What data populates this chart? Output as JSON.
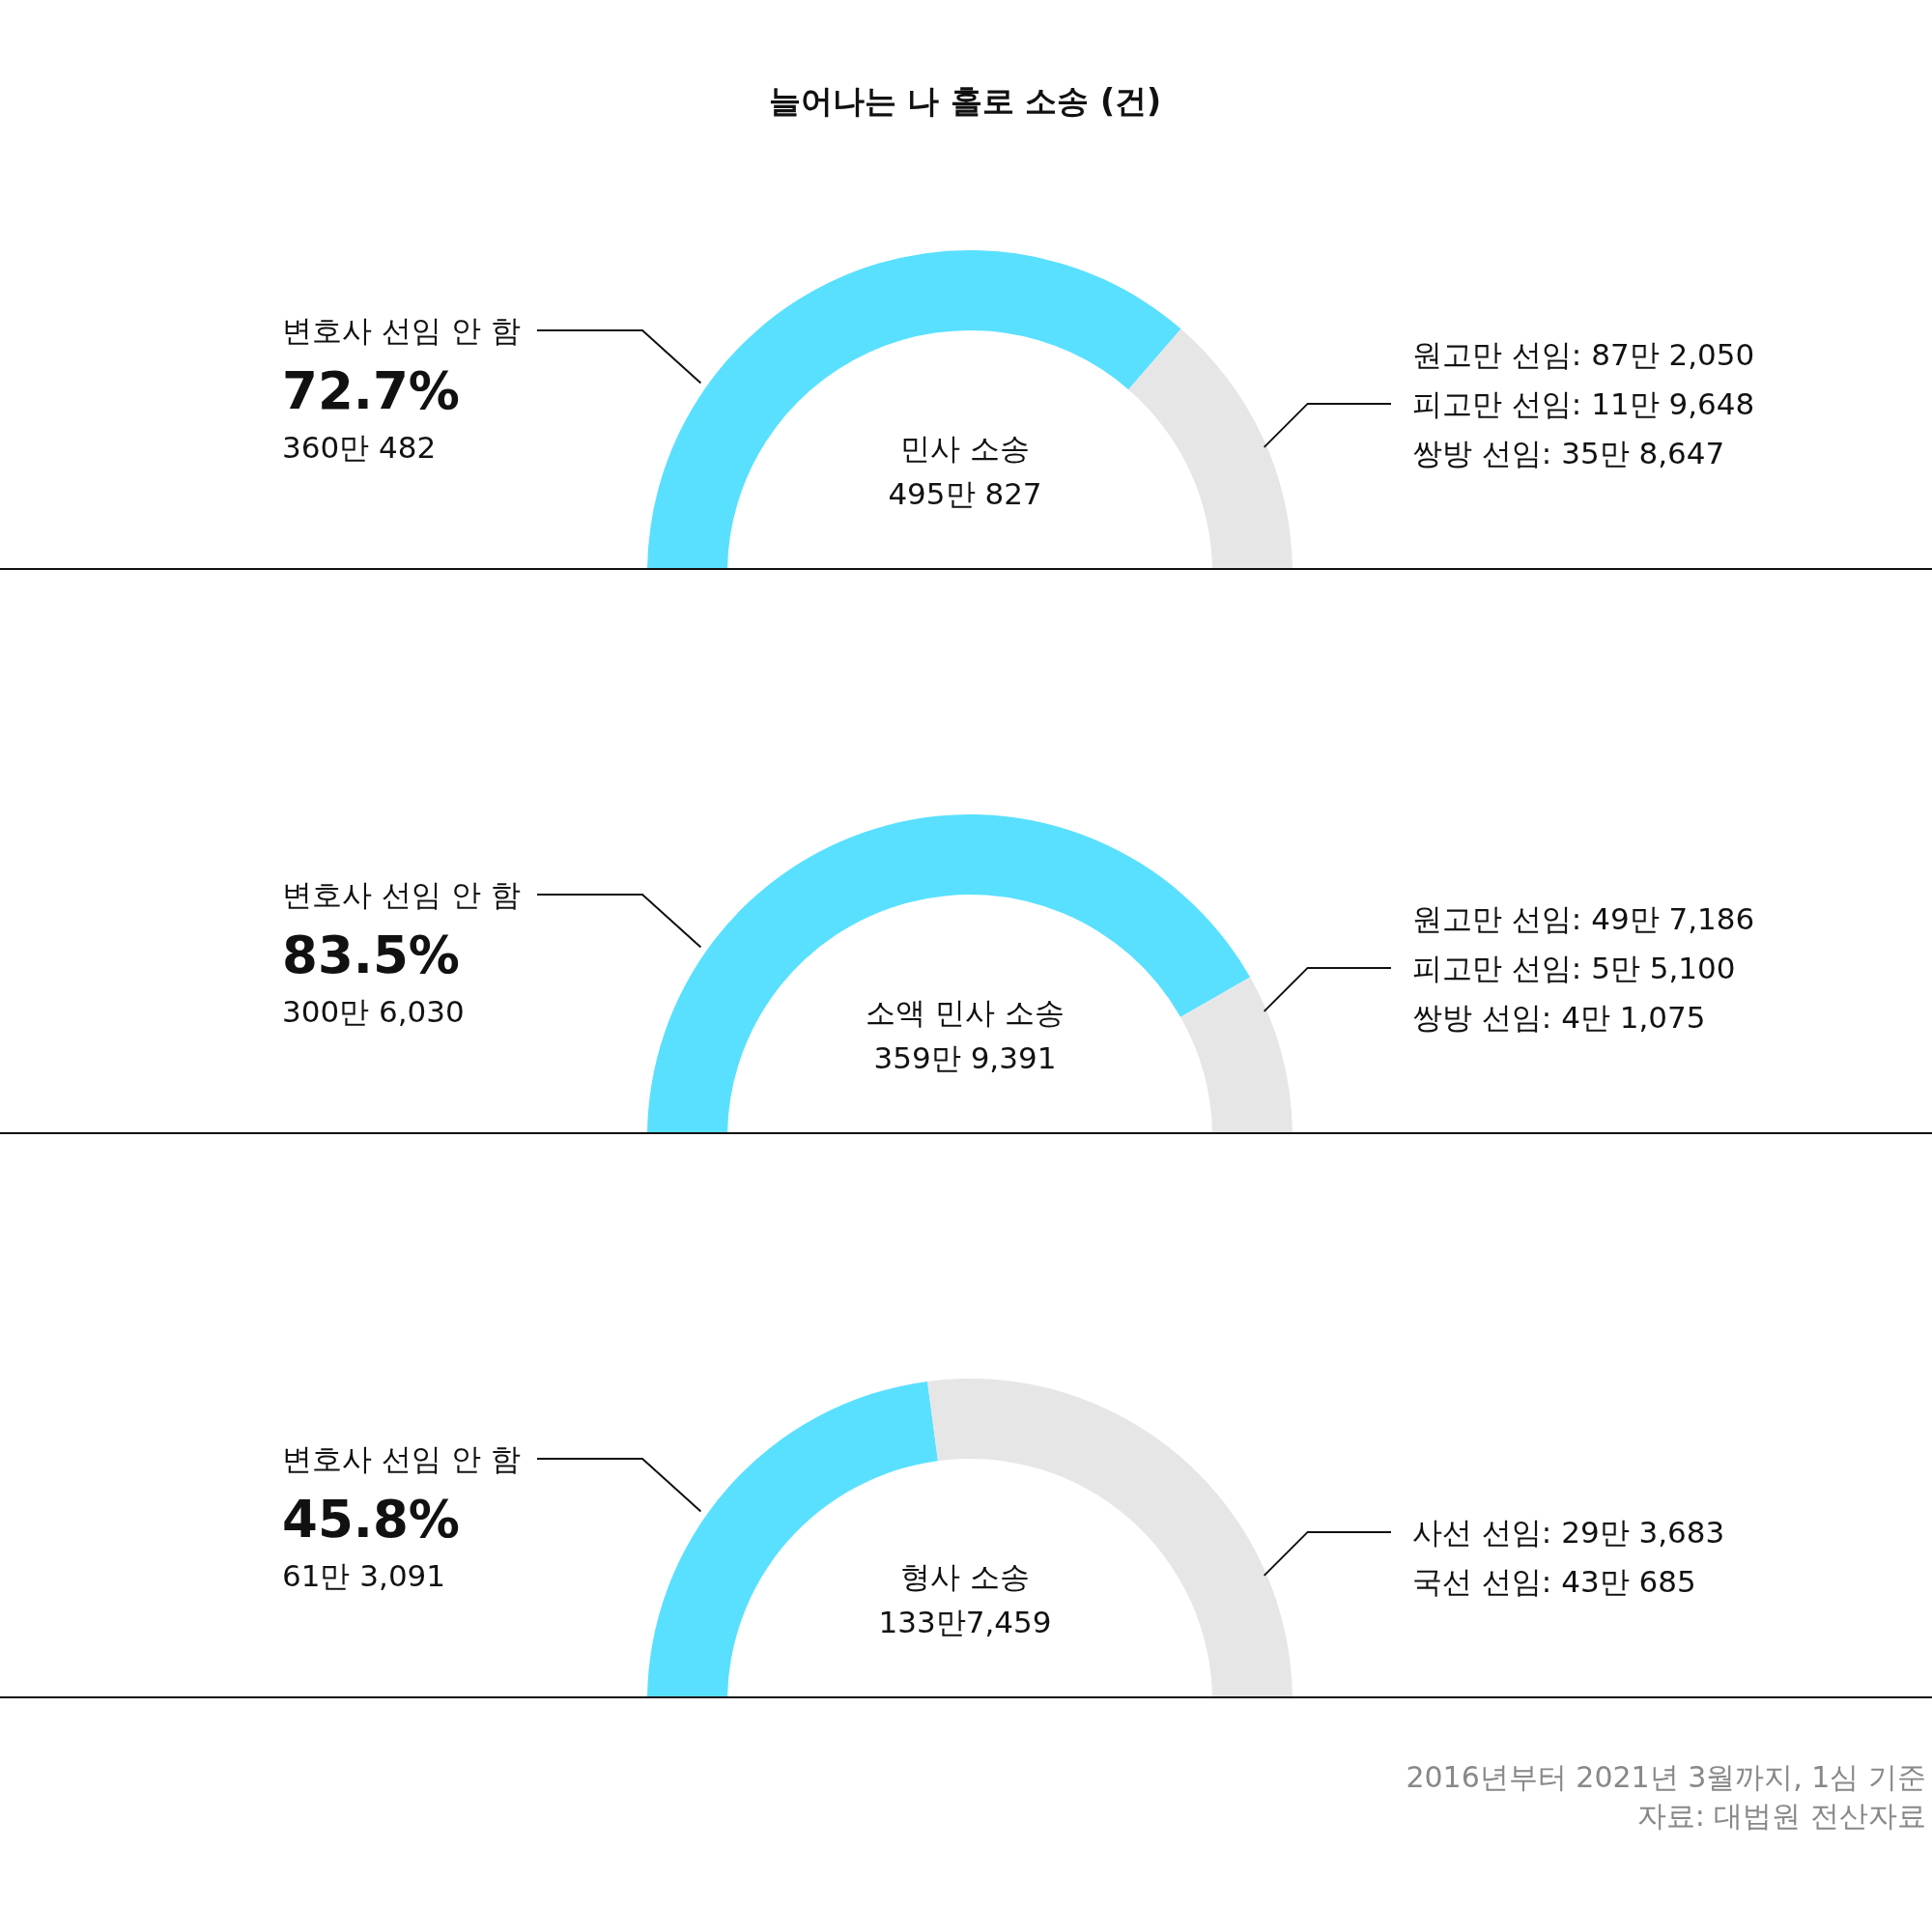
{
  "chart_data": [
    {
      "type": "donut",
      "title": "늘어나는 나 홀로 소송 (건)",
      "subtitle": "민사 소송",
      "categories": [
        "변호사 선임 안 함",
        null
      ],
      "values": [
        72.7,
        27.3
      ],
      "colors": [
        "#59e0ff",
        "#e6e6e6"
      ],
      "value_labels": [
        "72.7%",
        null
      ],
      "annotations": [
        "495만 827",
        "360만 482",
        "원고만 선임: 87만 2,050",
        "피고만 선임: 11만 9,648",
        "쌍방 선임: 35만 8,647"
      ]
    },
    {
      "type": "donut",
      "subtitle": "소액 민사 소송",
      "categories": [
        "변호사 선임 안 함",
        null
      ],
      "values": [
        83.5,
        16.5
      ],
      "colors": [
        "#59e0ff",
        "#e6e6e6"
      ],
      "value_labels": [
        "83.5%",
        null
      ],
      "annotations": [
        "359만 9,391",
        "300만 6,030",
        "원고만 선임: 49만 7,186",
        "피고만 선임: 5만 5,100",
        "쌍방 선임: 4만 1,075"
      ]
    },
    {
      "type": "donut",
      "subtitle": "형사 소송",
      "categories": [
        "변호사 선임 안 함",
        null
      ],
      "values": [
        45.8,
        54.2
      ],
      "colors": [
        "#59e0ff",
        "#e6e6e6"
      ],
      "value_labels": [
        "45.8%",
        null
      ],
      "annotations": [
        "133만7,459",
        "61만 3,091",
        "사선 선임: 29만 3,683",
        "국선 선임: 43만 685"
      ]
    },
    {
      "type": "other",
      "annotations": [
        "2016년부터 2021년 3월까지, 1심 기준",
        "자료: 대법원 전산자료"
      ]
    }
  ]
}
